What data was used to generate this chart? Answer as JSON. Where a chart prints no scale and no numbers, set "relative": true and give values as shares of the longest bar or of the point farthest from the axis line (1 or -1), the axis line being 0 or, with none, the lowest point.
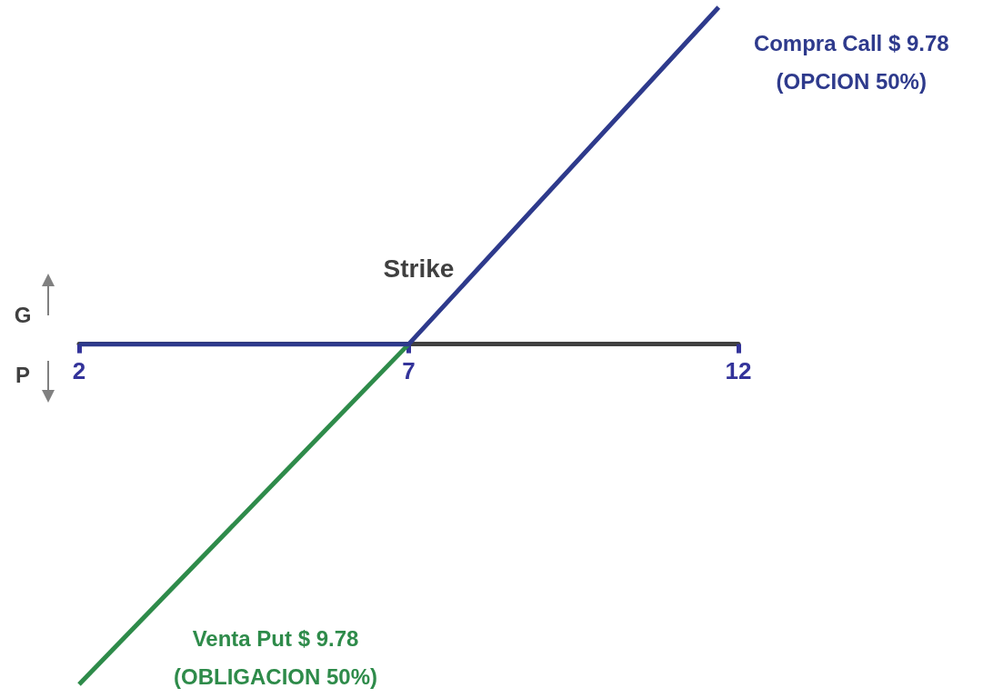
{
  "chart_data": {
    "type": "line",
    "relative": true,
    "xlim": [
      2,
      12
    ],
    "xticks": [
      2,
      7,
      12
    ],
    "series": [
      {
        "name": "Venta Put $ 9.78\n(OBLIGACION 50%)",
        "color": "#2e8b4a",
        "x": [
          2,
          7
        ],
        "values": [
          -1,
          0
        ]
      },
      {
        "name": "Compra Call $ 9.78\n(OPCION 50%)",
        "color": "#2e3a8c",
        "x": [
          2,
          7,
          11.7
        ],
        "values": [
          0,
          0,
          0.99
        ]
      }
    ],
    "annotations": [
      "G",
      "P",
      {
        "text": "Strike",
        "x": 7,
        "y": 0
      }
    ]
  }
}
